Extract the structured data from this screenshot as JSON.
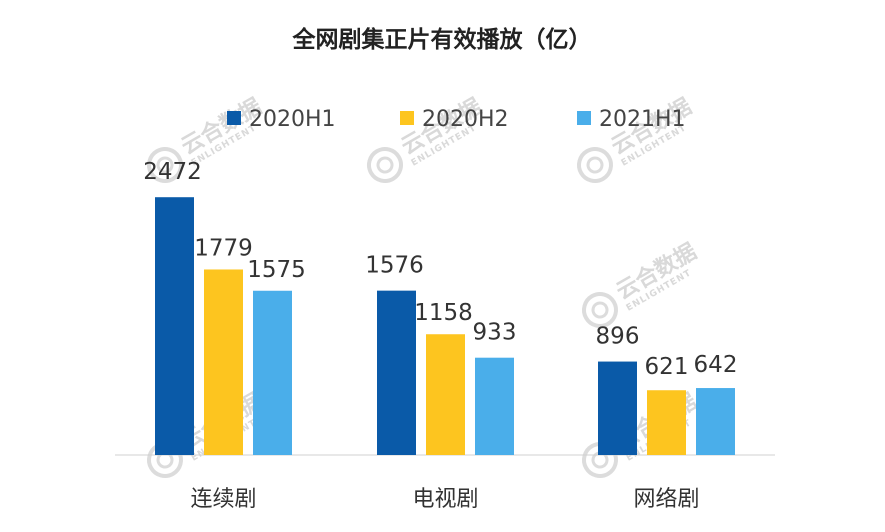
{
  "chart_data": {
    "type": "bar",
    "title": "全网剧集正片有效播放（亿）",
    "categories": [
      "连续剧",
      "电视剧",
      "网络剧"
    ],
    "series": [
      {
        "name": "2020H1",
        "color": "#0a5aa8",
        "values": [
          2472,
          1576,
          896
        ]
      },
      {
        "name": "2020H2",
        "color": "#fdc51f",
        "values": [
          1779,
          1158,
          621
        ]
      },
      {
        "name": "2021H1",
        "color": "#4aaeea",
        "values": [
          1575,
          933,
          642
        ]
      }
    ],
    "ylim": [
      0,
      2800
    ],
    "grid": false,
    "legend_position": "top"
  },
  "watermark": {
    "text": "云合数据",
    "subtext": "ENLIGHTENT"
  }
}
